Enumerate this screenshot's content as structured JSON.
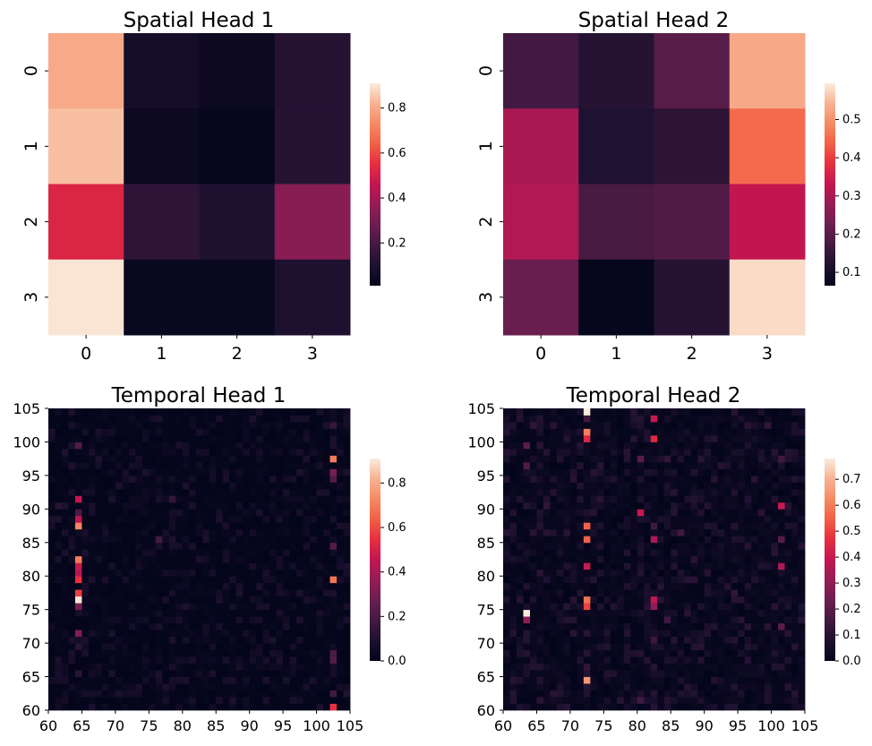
{
  "chart_data": [
    {
      "type": "heatmap",
      "title": "Spatial Head 1",
      "x_ticks": [
        "0",
        "1",
        "2",
        "3"
      ],
      "y_ticks": [
        "0",
        "1",
        "2",
        "3"
      ],
      "values": [
        [
          0.8,
          0.07,
          0.04,
          0.12
        ],
        [
          0.84,
          0.04,
          0.02,
          0.12
        ],
        [
          0.52,
          0.14,
          0.1,
          0.34
        ],
        [
          0.9,
          0.03,
          0.03,
          0.1
        ]
      ],
      "vmin": 0.01,
      "vmax": 0.91,
      "colorbar": {
        "ticks": [
          0.2,
          0.4,
          0.6,
          0.8
        ],
        "labels": [
          "0.2",
          "0.4",
          "0.6",
          "0.8"
        ]
      }
    },
    {
      "type": "heatmap",
      "title": "Spatial Head 2",
      "x_ticks": [
        "0",
        "1",
        "2",
        "3"
      ],
      "y_ticks": [
        "0",
        "1",
        "2",
        "3"
      ],
      "values": [
        [
          0.17,
          0.13,
          0.2,
          0.53
        ],
        [
          0.3,
          0.12,
          0.14,
          0.45
        ],
        [
          0.31,
          0.18,
          0.19,
          0.33
        ],
        [
          0.22,
          0.07,
          0.13,
          0.58
        ]
      ],
      "vmin": 0.065,
      "vmax": 0.595,
      "colorbar": {
        "ticks": [
          0.1,
          0.2,
          0.3,
          0.4,
          0.5
        ],
        "labels": [
          "0.1",
          "0.2",
          "0.3",
          "0.4",
          "0.5"
        ]
      }
    },
    {
      "type": "heatmap",
      "title": "Temporal Head 1",
      "x_range": [
        60,
        105
      ],
      "y_range": [
        60,
        105
      ],
      "x_ticks": [
        "60",
        "65",
        "70",
        "75",
        "80",
        "85",
        "90",
        "95",
        "100",
        "105"
      ],
      "y_ticks": [
        "60",
        "65",
        "70",
        "75",
        "80",
        "85",
        "90",
        "95",
        "100",
        "105"
      ],
      "vmin": 0.0,
      "vmax": 0.91,
      "colorbar": {
        "ticks": [
          0.0,
          0.2,
          0.4,
          0.6,
          0.8
        ],
        "labels": [
          "0.0",
          "0.2",
          "0.4",
          "0.6",
          "0.8"
        ]
      },
      "background_level": 0.015,
      "highlights": [
        {
          "x": 64,
          "y": 76,
          "v": 0.9
        },
        {
          "x": 64,
          "y": 77,
          "v": 0.58
        },
        {
          "x": 64,
          "y": 79,
          "v": 0.55
        },
        {
          "x": 64,
          "y": 80,
          "v": 0.42
        },
        {
          "x": 64,
          "y": 81,
          "v": 0.47
        },
        {
          "x": 64,
          "y": 82,
          "v": 0.7
        },
        {
          "x": 64,
          "y": 87,
          "v": 0.72
        },
        {
          "x": 64,
          "y": 88,
          "v": 0.44
        },
        {
          "x": 64,
          "y": 91,
          "v": 0.45
        },
        {
          "x": 64,
          "y": 75,
          "v": 0.3
        },
        {
          "x": 64,
          "y": 71,
          "v": 0.32
        },
        {
          "x": 64,
          "y": 99,
          "v": 0.22
        },
        {
          "x": 64,
          "y": 69,
          "v": 0.12
        },
        {
          "x": 64,
          "y": 65,
          "v": 0.12
        },
        {
          "x": 64,
          "y": 89,
          "v": 0.2
        },
        {
          "x": 102,
          "y": 97,
          "v": 0.7
        },
        {
          "x": 102,
          "y": 95,
          "v": 0.3
        },
        {
          "x": 102,
          "y": 94,
          "v": 0.22
        },
        {
          "x": 102,
          "y": 79,
          "v": 0.68
        },
        {
          "x": 102,
          "y": 84,
          "v": 0.22
        },
        {
          "x": 102,
          "y": 67,
          "v": 0.22
        },
        {
          "x": 102,
          "y": 68,
          "v": 0.2
        },
        {
          "x": 102,
          "y": 62,
          "v": 0.18
        },
        {
          "x": 102,
          "y": 60,
          "v": 0.55
        },
        {
          "x": 102,
          "y": 102,
          "v": 0.15
        },
        {
          "x": 104,
          "y": 62,
          "v": 0.1
        },
        {
          "x": 61,
          "y": 90,
          "v": 0.12
        },
        {
          "x": 76,
          "y": 85,
          "v": 0.18
        },
        {
          "x": 78,
          "y": 91,
          "v": 0.14
        },
        {
          "x": 83,
          "y": 85,
          "v": 0.08
        },
        {
          "x": 72,
          "y": 72,
          "v": 0.06
        },
        {
          "x": 91,
          "y": 73,
          "v": 0.06
        },
        {
          "x": 73,
          "y": 96,
          "v": 0.05
        },
        {
          "x": 88,
          "y": 99,
          "v": 0.05
        },
        {
          "x": 66,
          "y": 62,
          "v": 0.06
        }
      ]
    },
    {
      "type": "heatmap",
      "title": "Temporal Head 2",
      "x_range": [
        60,
        105
      ],
      "y_range": [
        60,
        105
      ],
      "x_ticks": [
        "60",
        "65",
        "70",
        "75",
        "80",
        "85",
        "90",
        "95",
        "100",
        "105"
      ],
      "y_ticks": [
        "60",
        "65",
        "70",
        "75",
        "80",
        "85",
        "90",
        "95",
        "100",
        "105"
      ],
      "vmin": 0.0,
      "vmax": 0.78,
      "colorbar": {
        "ticks": [
          0.0,
          0.1,
          0.2,
          0.3,
          0.4,
          0.5,
          0.6,
          0.7
        ],
        "labels": [
          "0.0",
          "0.1",
          "0.2",
          "0.3",
          "0.4",
          "0.5",
          "0.6",
          "0.7"
        ]
      },
      "background_level": 0.03,
      "highlights": [
        {
          "x": 72,
          "y": 104,
          "v": 0.78
        },
        {
          "x": 72,
          "y": 101,
          "v": 0.6
        },
        {
          "x": 72,
          "y": 100,
          "v": 0.45
        },
        {
          "x": 72,
          "y": 87,
          "v": 0.55
        },
        {
          "x": 72,
          "y": 85,
          "v": 0.55
        },
        {
          "x": 72,
          "y": 81,
          "v": 0.4
        },
        {
          "x": 72,
          "y": 76,
          "v": 0.58
        },
        {
          "x": 72,
          "y": 75,
          "v": 0.5
        },
        {
          "x": 72,
          "y": 64,
          "v": 0.65
        },
        {
          "x": 72,
          "y": 103,
          "v": 0.15
        },
        {
          "x": 72,
          "y": 71,
          "v": 0.1
        },
        {
          "x": 72,
          "y": 66,
          "v": 0.12
        },
        {
          "x": 63,
          "y": 74,
          "v": 0.78
        },
        {
          "x": 63,
          "y": 73,
          "v": 0.3
        },
        {
          "x": 63,
          "y": 99,
          "v": 0.2
        },
        {
          "x": 63,
          "y": 96,
          "v": 0.18
        },
        {
          "x": 64,
          "y": 102,
          "v": 0.12
        },
        {
          "x": 82,
          "y": 103,
          "v": 0.4
        },
        {
          "x": 82,
          "y": 100,
          "v": 0.45
        },
        {
          "x": 82,
          "y": 85,
          "v": 0.35
        },
        {
          "x": 82,
          "y": 76,
          "v": 0.38
        },
        {
          "x": 82,
          "y": 75,
          "v": 0.3
        },
        {
          "x": 82,
          "y": 87,
          "v": 0.15
        },
        {
          "x": 82,
          "y": 70,
          "v": 0.14
        },
        {
          "x": 80,
          "y": 89,
          "v": 0.4
        },
        {
          "x": 80,
          "y": 97,
          "v": 0.2
        },
        {
          "x": 80,
          "y": 61,
          "v": 0.15
        },
        {
          "x": 86,
          "y": 86,
          "v": 0.15
        },
        {
          "x": 84,
          "y": 73,
          "v": 0.15
        },
        {
          "x": 84,
          "y": 97,
          "v": 0.12
        },
        {
          "x": 101,
          "y": 90,
          "v": 0.4
        },
        {
          "x": 101,
          "y": 81,
          "v": 0.35
        },
        {
          "x": 101,
          "y": 85,
          "v": 0.2
        },
        {
          "x": 101,
          "y": 72,
          "v": 0.2
        },
        {
          "x": 101,
          "y": 97,
          "v": 0.15
        },
        {
          "x": 99,
          "y": 102,
          "v": 0.12
        },
        {
          "x": 94,
          "y": 77,
          "v": 0.12
        },
        {
          "x": 66,
          "y": 90,
          "v": 0.12
        },
        {
          "x": 61,
          "y": 86,
          "v": 0.08
        },
        {
          "x": 65,
          "y": 66,
          "v": 0.08
        }
      ]
    }
  ]
}
